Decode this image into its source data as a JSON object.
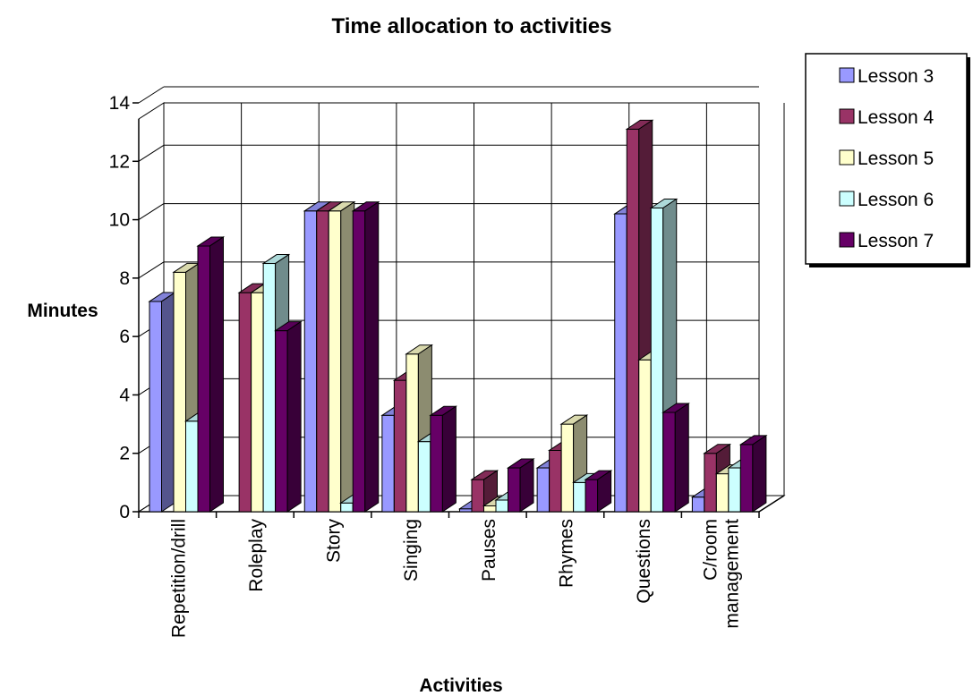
{
  "chart_data": {
    "type": "bar",
    "title": "Time allocation to activities",
    "xlabel": "Activities",
    "ylabel": "Minutes",
    "ylim": [
      0,
      14
    ],
    "yticks": [
      0,
      2,
      4,
      6,
      8,
      10,
      12,
      14
    ],
    "grid": true,
    "legend_position": "right",
    "three_d": true,
    "categories": [
      [
        "Repetition/drill"
      ],
      [
        "Roleplay"
      ],
      [
        "Story"
      ],
      [
        "Singing"
      ],
      [
        "Pauses"
      ],
      [
        "Rhymes"
      ],
      [
        "Questions"
      ],
      [
        "C/room",
        "management"
      ]
    ],
    "series": [
      {
        "name": "Lesson 3",
        "color": "#9999FF",
        "values": [
          7.2,
          0,
          10.3,
          3.3,
          0.1,
          1.5,
          10.2,
          0.5
        ]
      },
      {
        "name": "Lesson 4",
        "color": "#993366",
        "values": [
          0,
          7.5,
          10.3,
          4.5,
          1.1,
          2.1,
          13.1,
          2.0
        ]
      },
      {
        "name": "Lesson 5",
        "color": "#FFFFCC",
        "values": [
          8.2,
          7.5,
          10.3,
          5.4,
          0.2,
          3.0,
          5.2,
          1.3
        ]
      },
      {
        "name": "Lesson 6",
        "color": "#CCFFFF",
        "values": [
          3.1,
          8.5,
          0.3,
          2.4,
          0.4,
          1.0,
          10.4,
          1.5
        ]
      },
      {
        "name": "Lesson 7",
        "color": "#660066",
        "values": [
          9.1,
          6.2,
          10.3,
          3.3,
          1.5,
          1.1,
          3.4,
          2.3
        ]
      }
    ]
  }
}
